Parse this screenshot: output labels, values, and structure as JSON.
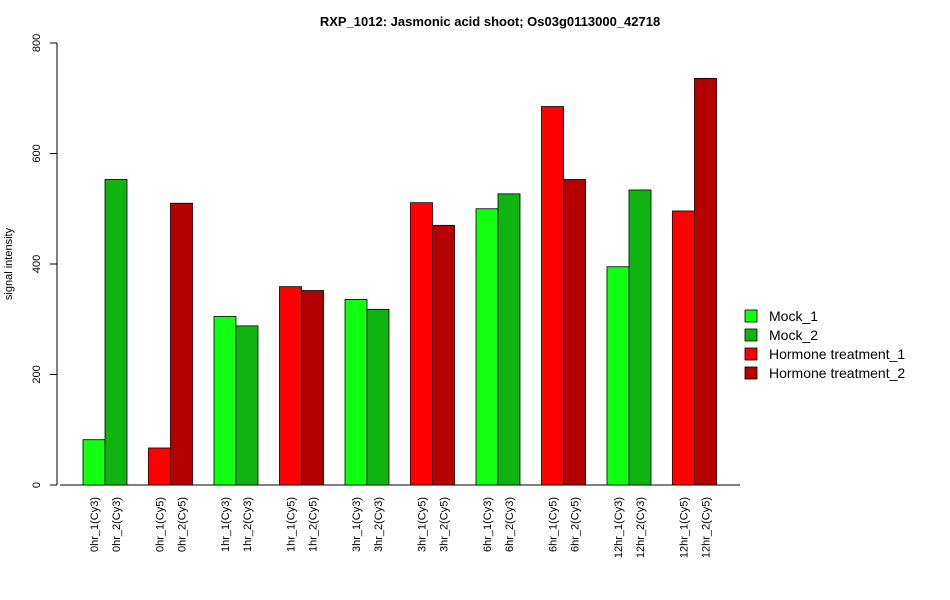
{
  "chart_data": {
    "type": "bar",
    "title": "RXP_1012: Jasmonic acid shoot; Os03g0113000_42718",
    "xlabel": "",
    "ylabel": "signal intensity",
    "ylim": [
      0,
      800
    ],
    "yticks": [
      0,
      200,
      400,
      600,
      800
    ],
    "grid": false,
    "legend_position": "right",
    "categories": [
      "0hr_1(Cy3)",
      "0hr_2(Cy3)",
      "0hr_1(Cy5)",
      "0hr_2(Cy5)",
      "1hr_1(Cy3)",
      "1hr_2(Cy3)",
      "1hr_1(Cy5)",
      "1hr_2(Cy5)",
      "3hr_1(Cy3)",
      "3hr_2(Cy3)",
      "3hr_1(Cy5)",
      "3hr_2(Cy5)",
      "6hr_1(Cy3)",
      "6hr_2(Cy3)",
      "6hr_1(Cy5)",
      "6hr_2(Cy5)",
      "12hr_1(Cy3)",
      "12hr_2(Cy3)",
      "12hr_1(Cy5)",
      "12hr_2(Cy5)"
    ],
    "values": [
      82,
      553,
      67,
      510,
      305,
      288,
      359,
      352,
      336,
      318,
      511,
      470,
      500,
      527,
      685,
      553,
      395,
      534,
      496,
      736
    ],
    "bar_series": [
      0,
      1,
      2,
      3,
      0,
      1,
      2,
      3,
      0,
      1,
      2,
      3,
      0,
      1,
      2,
      3,
      0,
      1,
      2,
      3
    ],
    "series": [
      {
        "name": "Mock_1",
        "color": "#11ff11"
      },
      {
        "name": "Mock_2",
        "color": "#10b410"
      },
      {
        "name": "Hormone treatment_1",
        "color": "#ff0000"
      },
      {
        "name": "Hormone treatment_2",
        "color": "#b50000"
      }
    ]
  }
}
